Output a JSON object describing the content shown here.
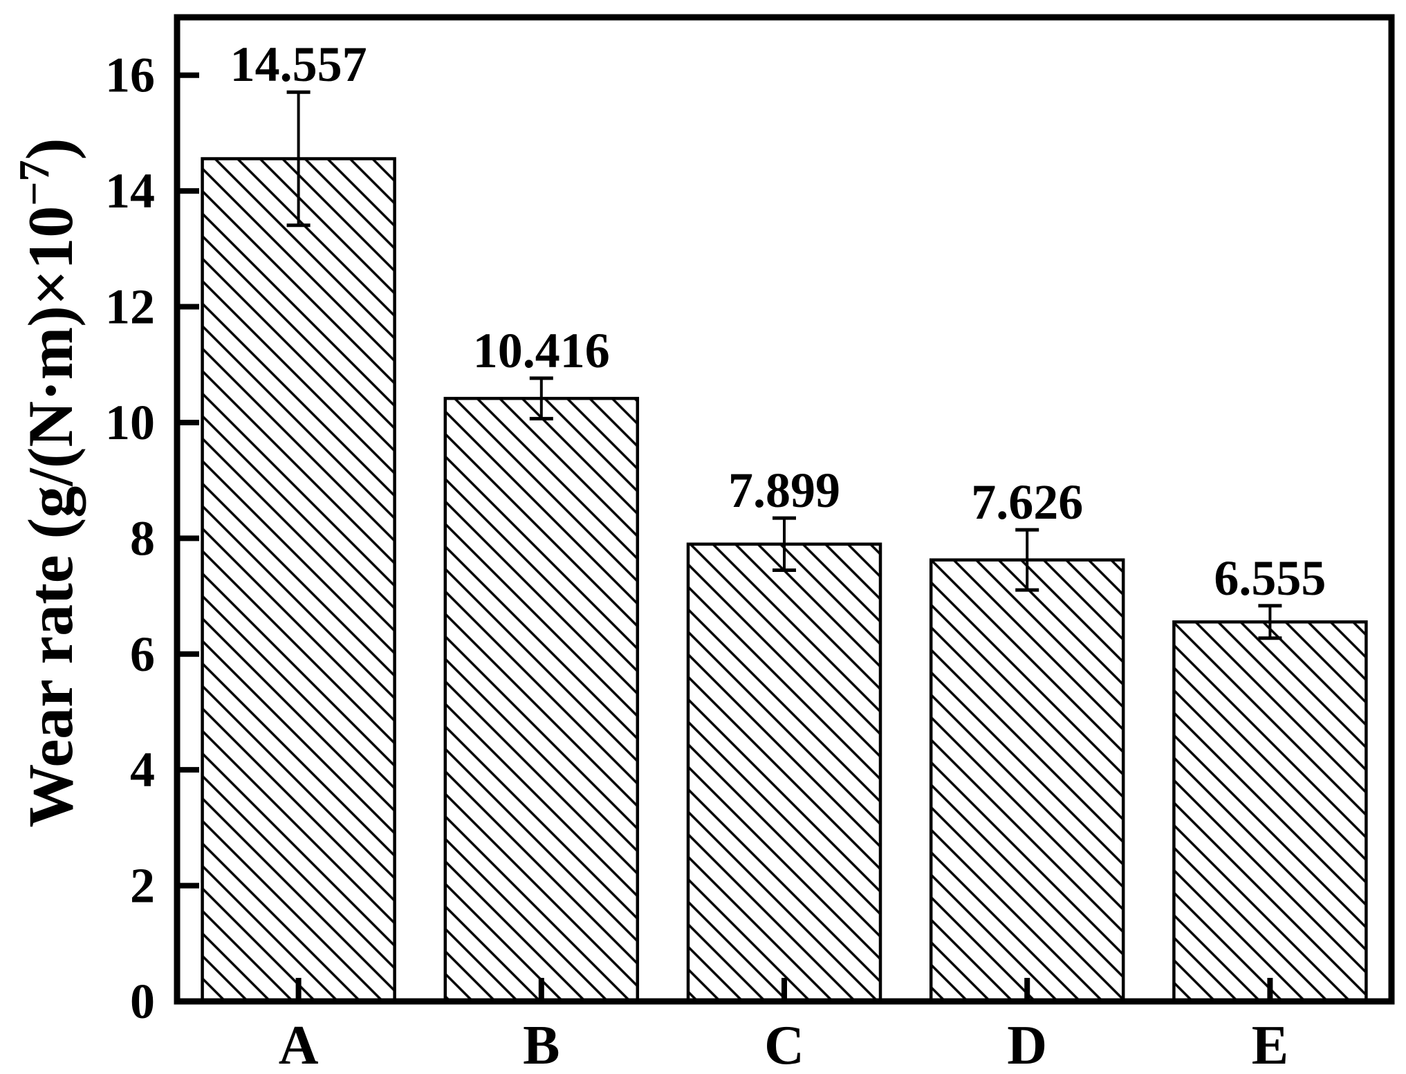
{
  "chart_data": {
    "type": "bar",
    "title": "",
    "categories": [
      "A",
      "B",
      "C",
      "D",
      "E"
    ],
    "values": [
      14.557,
      10.416,
      7.899,
      7.626,
      6.555
    ],
    "errors": [
      1.15,
      0.35,
      0.45,
      0.52,
      0.28
    ],
    "value_labels": [
      "14.557",
      "10.416",
      "7.899",
      "7.626",
      "6.555"
    ],
    "xlabel": "",
    "ylabel": "Wear rate (g/(N·m)×10⁻⁷)",
    "ylabel_parts": {
      "prefix": "Wear rate (g/(N·m)×10",
      "superscript": "−7",
      "suffix": ")"
    },
    "ylim": [
      0,
      17
    ],
    "yticks": [
      0,
      2,
      4,
      6,
      8,
      10,
      12,
      14,
      16
    ],
    "bar_style": "diagonal-hatch",
    "bar_outline_color": "#000000",
    "hatch_color": "#000000",
    "background_color": "#ffffff",
    "grid": false,
    "legend": null,
    "error_bar_caps": true
  }
}
